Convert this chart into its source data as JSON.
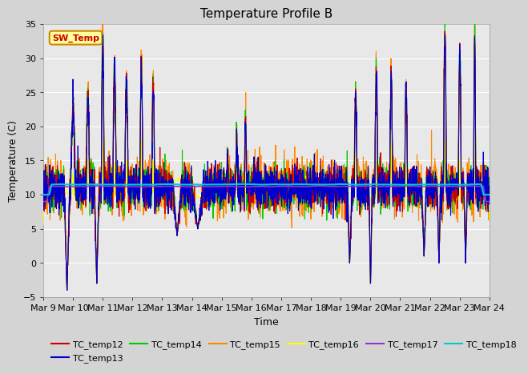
{
  "title": "Temperature Profile B",
  "xlabel": "Time",
  "ylabel": "Temperature (C)",
  "ylim": [
    -5,
    35
  ],
  "x_tick_labels": [
    "Mar 9",
    "Mar 10",
    "Mar 11",
    "Mar 12",
    "Mar 13",
    "Mar 14",
    "Mar 15",
    "Mar 16",
    "Mar 17",
    "Mar 18",
    "Mar 19",
    "Mar 20",
    "Mar 21",
    "Mar 22",
    "Mar 23",
    "Mar 24"
  ],
  "line_colors_tc": [
    "#cc0000",
    "#0000cc",
    "#00cc00",
    "#ff8800",
    "#ffff00",
    "#9933cc",
    "#00cccc"
  ],
  "sw_temp_color": "#ff8800",
  "sw_temp_box_fc": "#ffff99",
  "sw_temp_box_ec": "#cc8800",
  "sw_temp_text_color": "#cc0000",
  "fig_bg_color": "#d4d4d4",
  "plot_bg_color": "#e8e8e8",
  "grid_color": "#ffffff",
  "yticks": [
    -5,
    0,
    5,
    10,
    15,
    20,
    25,
    30,
    35
  ],
  "legend_labels": [
    "TC_temp12",
    "TC_temp13",
    "TC_temp14",
    "TC_temp15",
    "TC_temp16",
    "TC_temp17",
    "TC_temp18"
  ]
}
